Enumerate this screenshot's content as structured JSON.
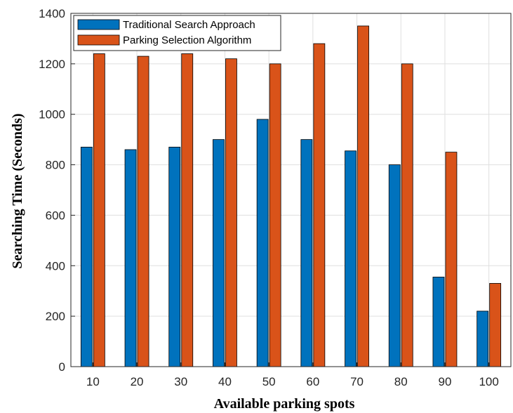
{
  "chart_data": {
    "type": "bar",
    "title": "",
    "xlabel": "Available parking spots",
    "ylabel": "Searching Time (Seconds)",
    "categories": [
      "10",
      "20",
      "30",
      "40",
      "50",
      "60",
      "70",
      "80",
      "90",
      "100"
    ],
    "ylim": [
      0,
      1400
    ],
    "yticks": [
      0,
      200,
      400,
      600,
      800,
      1000,
      1200,
      1400
    ],
    "grid": true,
    "legend_position": "top-left",
    "series": [
      {
        "name": "Traditional Search Approach",
        "color": "#0072BD",
        "values": [
          870,
          860,
          870,
          900,
          980,
          900,
          855,
          800,
          355,
          220
        ]
      },
      {
        "name": "Parking Selection Algorithm",
        "color": "#D95319",
        "values": [
          1240,
          1230,
          1240,
          1220,
          1200,
          1280,
          1350,
          1200,
          850,
          330
        ]
      }
    ]
  }
}
